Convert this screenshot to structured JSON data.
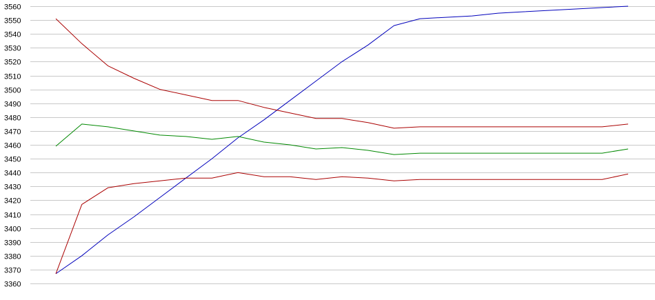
{
  "chart_data": {
    "type": "line",
    "title": "",
    "xlabel": "",
    "ylabel": "",
    "ylim": [
      3360,
      3560
    ],
    "yticks": [
      3360,
      3370,
      3380,
      3390,
      3400,
      3410,
      3420,
      3430,
      3440,
      3450,
      3460,
      3470,
      3480,
      3490,
      3500,
      3510,
      3520,
      3530,
      3540,
      3550,
      3560
    ],
    "grid": true,
    "legend": "none",
    "x": [
      1,
      2,
      3,
      4,
      5,
      6,
      7,
      8,
      9,
      10,
      11,
      12,
      13,
      14,
      15,
      16,
      17,
      18,
      19,
      20,
      21,
      22,
      23
    ],
    "series": [
      {
        "color": "#0000bb",
        "values": [
          3367,
          3380,
          3395,
          3408,
          3422,
          3436,
          3450,
          3465,
          3478,
          3492,
          3506,
          3520,
          3532,
          3546,
          3551,
          3552,
          3553,
          3555,
          3556,
          3557,
          3558,
          3559,
          3560
        ]
      },
      {
        "color": "#aa0000",
        "values": [
          3551,
          3533,
          3517,
          3508,
          3500,
          3496,
          3492,
          3492,
          3487,
          3483,
          3479,
          3479,
          3476,
          3472,
          3473,
          3473,
          3473,
          3473,
          3473,
          3473,
          3473,
          3473,
          3475
        ]
      },
      {
        "color": "#008800",
        "values": [
          3459,
          3475,
          3473,
          3470,
          3467,
          3466,
          3464,
          3466,
          3462,
          3460,
          3457,
          3458,
          3456,
          3453,
          3454,
          3454,
          3454,
          3454,
          3454,
          3454,
          3454,
          3454,
          3457
        ]
      },
      {
        "color": "#aa0000",
        "values": [
          3367,
          3417,
          3429,
          3432,
          3434,
          3436,
          3436,
          3440,
          3437,
          3437,
          3435,
          3437,
          3436,
          3434,
          3435,
          3435,
          3435,
          3435,
          3435,
          3435,
          3435,
          3435,
          3439
        ]
      }
    ]
  }
}
